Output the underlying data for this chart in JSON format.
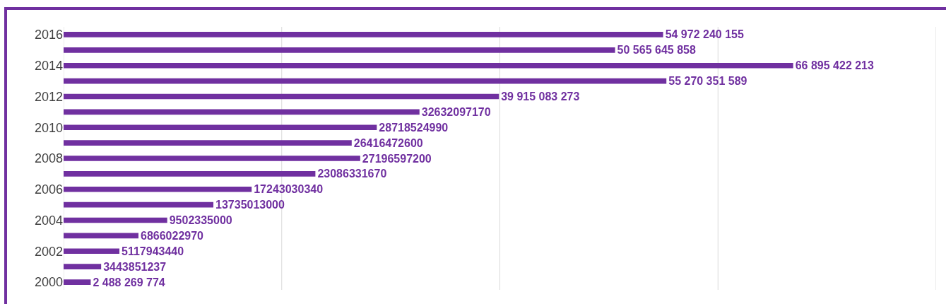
{
  "chart_data": {
    "type": "bar",
    "orientation": "horizontal",
    "categories": [
      "2016",
      null,
      "2014",
      null,
      "2012",
      null,
      "2010",
      null,
      "2008",
      null,
      "2006",
      null,
      "2004",
      null,
      "2002",
      null,
      "2000"
    ],
    "values": [
      54972240155,
      50565645858,
      66895422213,
      55270351589,
      39915083273,
      32632097170,
      28718524990,
      26416472600,
      27196597200,
      23086331670,
      17243030340,
      13735013000,
      9502335000,
      6866022970,
      5117943440,
      3443851237,
      2488269774
    ],
    "value_labels": [
      "54 972 240 155",
      "50 565 645 858",
      "66 895 422 213",
      "55 270 351 589",
      "39 915 083 273",
      "32632097170",
      "28718524990",
      "26416472600",
      "27196597200",
      "23086331670",
      "17243030340",
      "13735013000",
      "9502335000",
      "6866022970",
      "5117943440",
      "3443851237",
      "2 488 269 774"
    ],
    "color": "#7030a0",
    "xlim": [
      0,
      80000000000
    ],
    "xticks": [
      {
        "value": 0,
        "label": null
      },
      {
        "value": 20000000000,
        "label": null
      },
      {
        "value": 40000000000,
        "label": null
      },
      {
        "value": 60000000000,
        "label": null
      },
      {
        "value": 80000000000,
        "label": null
      }
    ],
    "grid": "x",
    "tick_labels": "y",
    "legend": false
  }
}
